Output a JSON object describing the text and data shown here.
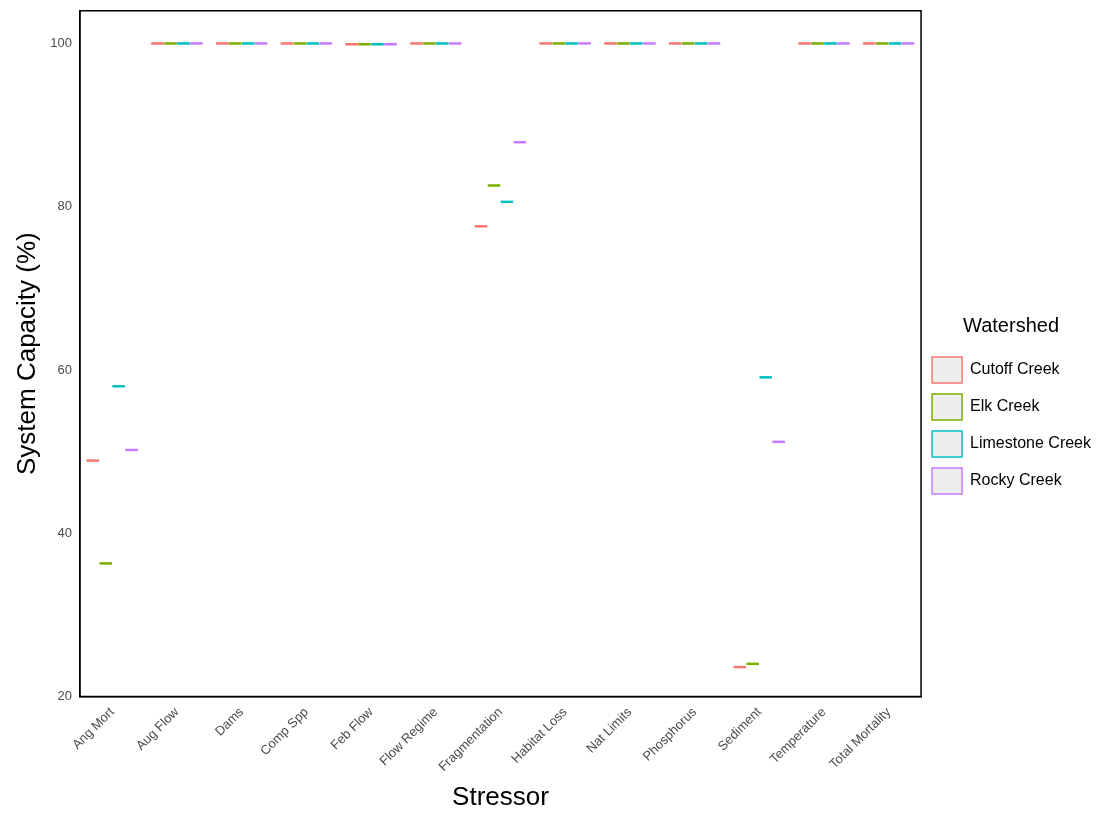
{
  "chart_data": {
    "type": "box",
    "xlabel": "Stressor",
    "ylabel": "System Capacity (%)",
    "legend_title": "Watershed",
    "legend": "right",
    "grid": false,
    "categories": [
      "Ang Mort",
      "Aug Flow",
      "Dams",
      "Comp Spp",
      "Feb Flow",
      "Flow Regime",
      "Fragmentation",
      "Habitat Loss",
      "Nat Limits",
      "Phosphorus",
      "Sediment",
      "Temperature",
      "Total Mortality"
    ],
    "ylim": [
      20,
      104
    ],
    "yticks": [
      20,
      40,
      60,
      80,
      100
    ],
    "series": [
      {
        "name": "Cutoff Creek",
        "color": "#f8766d",
        "boxes": [
          {
            "low": 48.9,
            "q1": 48.9,
            "median": 48.9,
            "q3": 48.9,
            "high": 48.9
          },
          {
            "low": 100,
            "q1": 100,
            "median": 100,
            "q3": 100,
            "high": 100
          },
          {
            "low": 100,
            "q1": 100,
            "median": 100,
            "q3": 100,
            "high": 100
          },
          {
            "low": 100,
            "q1": 100,
            "median": 100,
            "q3": 100,
            "high": 100
          },
          {
            "low": 99.9,
            "q1": 99.9,
            "median": 99.9,
            "q3": 99.9,
            "high": 99.9
          },
          {
            "low": 100,
            "q1": 100,
            "median": 100,
            "q3": 100,
            "high": 100
          },
          {
            "low": 77.6,
            "q1": 77.6,
            "median": 77.6,
            "q3": 77.6,
            "high": 77.6
          },
          {
            "low": 100,
            "q1": 100,
            "median": 100,
            "q3": 100,
            "high": 100
          },
          {
            "low": 100,
            "q1": 100,
            "median": 100,
            "q3": 100,
            "high": 100
          },
          {
            "low": 100,
            "q1": 100,
            "median": 100,
            "q3": 100,
            "high": 100
          },
          {
            "low": 23.6,
            "q1": 23.6,
            "median": 23.6,
            "q3": 23.6,
            "high": 23.6
          },
          {
            "low": 100,
            "q1": 100,
            "median": 100,
            "q3": 100,
            "high": 100
          },
          {
            "low": 100,
            "q1": 100,
            "median": 100,
            "q3": 100,
            "high": 100
          }
        ]
      },
      {
        "name": "Elk Creek",
        "color": "#7cae00",
        "boxes": [
          {
            "low": 36.3,
            "q1": 36.3,
            "median": 36.3,
            "q3": 36.3,
            "high": 36.3
          },
          {
            "low": 100,
            "q1": 100,
            "median": 100,
            "q3": 100,
            "high": 100
          },
          {
            "low": 100,
            "q1": 100,
            "median": 100,
            "q3": 100,
            "high": 100
          },
          {
            "low": 100,
            "q1": 100,
            "median": 100,
            "q3": 100,
            "high": 100
          },
          {
            "low": 99.9,
            "q1": 99.9,
            "median": 99.9,
            "q3": 99.9,
            "high": 99.9
          },
          {
            "low": 100,
            "q1": 100,
            "median": 100,
            "q3": 100,
            "high": 100
          },
          {
            "low": 82.6,
            "q1": 82.6,
            "median": 82.6,
            "q3": 82.6,
            "high": 82.6
          },
          {
            "low": 100,
            "q1": 100,
            "median": 100,
            "q3": 100,
            "high": 100
          },
          {
            "low": 100,
            "q1": 100,
            "median": 100,
            "q3": 100,
            "high": 100
          },
          {
            "low": 100,
            "q1": 100,
            "median": 100,
            "q3": 100,
            "high": 100
          },
          {
            "low": 24.0,
            "q1": 24.0,
            "median": 24.0,
            "q3": 24.0,
            "high": 24.0
          },
          {
            "low": 100,
            "q1": 100,
            "median": 100,
            "q3": 100,
            "high": 100
          },
          {
            "low": 100,
            "q1": 100,
            "median": 100,
            "q3": 100,
            "high": 100
          }
        ]
      },
      {
        "name": "Limestone Creek",
        "color": "#00bfc4",
        "boxes": [
          {
            "low": 58.0,
            "q1": 58.0,
            "median": 58.0,
            "q3": 58.0,
            "high": 58.0
          },
          {
            "low": 100,
            "q1": 100,
            "median": 100,
            "q3": 100,
            "high": 100
          },
          {
            "low": 100,
            "q1": 100,
            "median": 100,
            "q3": 100,
            "high": 100
          },
          {
            "low": 100,
            "q1": 100,
            "median": 100,
            "q3": 100,
            "high": 100
          },
          {
            "low": 99.9,
            "q1": 99.9,
            "median": 99.9,
            "q3": 99.9,
            "high": 99.9
          },
          {
            "low": 100,
            "q1": 100,
            "median": 100,
            "q3": 100,
            "high": 100
          },
          {
            "low": 80.6,
            "q1": 80.6,
            "median": 80.6,
            "q3": 80.6,
            "high": 80.6
          },
          {
            "low": 100,
            "q1": 100,
            "median": 100,
            "q3": 100,
            "high": 100
          },
          {
            "low": 100,
            "q1": 100,
            "median": 100,
            "q3": 100,
            "high": 100
          },
          {
            "low": 100,
            "q1": 100,
            "median": 100,
            "q3": 100,
            "high": 100
          },
          {
            "low": 59.1,
            "q1": 59.1,
            "median": 59.1,
            "q3": 59.1,
            "high": 59.1
          },
          {
            "low": 100,
            "q1": 100,
            "median": 100,
            "q3": 100,
            "high": 100
          },
          {
            "low": 100,
            "q1": 100,
            "median": 100,
            "q3": 100,
            "high": 100
          }
        ]
      },
      {
        "name": "Rocky Creek",
        "color": "#c77cff",
        "boxes": [
          {
            "low": 50.2,
            "q1": 50.2,
            "median": 50.2,
            "q3": 50.2,
            "high": 50.2
          },
          {
            "low": 100,
            "q1": 100,
            "median": 100,
            "q3": 100,
            "high": 100
          },
          {
            "low": 100,
            "q1": 100,
            "median": 100,
            "q3": 100,
            "high": 100
          },
          {
            "low": 100,
            "q1": 100,
            "median": 100,
            "q3": 100,
            "high": 100
          },
          {
            "low": 99.9,
            "q1": 99.9,
            "median": 99.9,
            "q3": 99.9,
            "high": 99.9
          },
          {
            "low": 100,
            "q1": 100,
            "median": 100,
            "q3": 100,
            "high": 100
          },
          {
            "low": 87.9,
            "q1": 87.9,
            "median": 87.9,
            "q3": 87.9,
            "high": 87.9
          },
          {
            "low": 100,
            "q1": 100,
            "median": 100,
            "q3": 100,
            "high": 100
          },
          {
            "low": 100,
            "q1": 100,
            "median": 100,
            "q3": 100,
            "high": 100
          },
          {
            "low": 100,
            "q1": 100,
            "median": 100,
            "q3": 100,
            "high": 100
          },
          {
            "low": 51.2,
            "q1": 51.2,
            "median": 51.2,
            "q3": 51.2,
            "high": 51.2
          },
          {
            "low": 100,
            "q1": 100,
            "median": 100,
            "q3": 100,
            "high": 100
          },
          {
            "low": 100,
            "q1": 100,
            "median": 100,
            "q3": 100,
            "high": 100
          }
        ]
      }
    ]
  }
}
